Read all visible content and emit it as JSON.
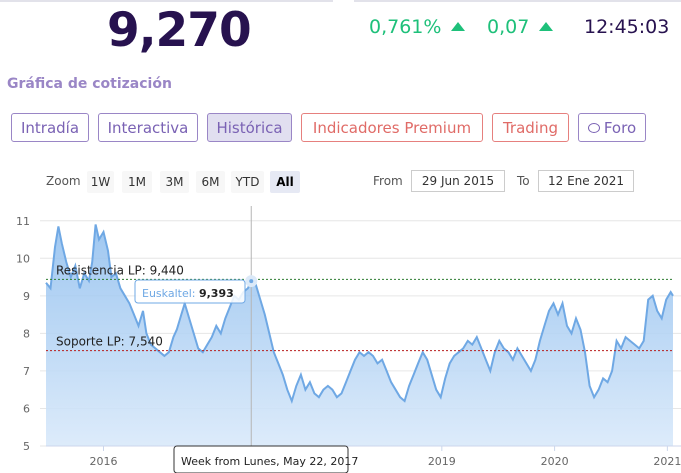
{
  "quote": {
    "price": "9,270",
    "change_pct": "0,761%",
    "change_abs": "0,07",
    "time": "12:45:03",
    "up_color": "#1ec07a"
  },
  "section_title": "Gráfica de cotización",
  "tabs": [
    {
      "label": "Intradía",
      "active": false,
      "style": "default"
    },
    {
      "label": "Interactiva",
      "active": false,
      "style": "default"
    },
    {
      "label": "Histórica",
      "active": true,
      "style": "default"
    },
    {
      "label": "Indicadores Premium",
      "active": false,
      "style": "premium"
    },
    {
      "label": "Trading",
      "active": false,
      "style": "premium"
    },
    {
      "label": "Foro",
      "active": false,
      "style": "default",
      "icon": "chat-bubble-icon"
    }
  ],
  "range_selector": {
    "zoom_label": "Zoom",
    "buttons": [
      "1W",
      "1M",
      "3M",
      "6M",
      "YTD",
      "All"
    ],
    "selected": "All",
    "from_label": "From",
    "from_value": "29 Jun 2015",
    "to_label": "To",
    "to_value": "12 Ene 2021"
  },
  "chart_data": {
    "type": "area",
    "x_ticks": [
      "2016",
      "2019",
      "2020",
      "2021"
    ],
    "y_ticks": [
      "5",
      "6",
      "7",
      "8",
      "9",
      "10",
      "11"
    ],
    "ylim": [
      5,
      11.5
    ],
    "series_color": "#6fa8e4",
    "reference_lines": [
      {
        "label": "Resistencia LP: 9,440",
        "value": 9.44,
        "color": "#2e7d32"
      },
      {
        "label": "Soporte LP: 7,540",
        "value": 7.54,
        "color": "#b71c1c"
      }
    ],
    "tooltip": {
      "series": "Euskaltel",
      "value": "9,393",
      "x_label": "Week from Lunes, May 22, 2017"
    },
    "points": [
      [
        2015.49,
        9.35
      ],
      [
        2015.53,
        9.2
      ],
      [
        2015.57,
        10.3
      ],
      [
        2015.6,
        10.85
      ],
      [
        2015.63,
        10.4
      ],
      [
        2015.67,
        9.9
      ],
      [
        2015.71,
        9.5
      ],
      [
        2015.75,
        9.8
      ],
      [
        2015.79,
        9.2
      ],
      [
        2015.83,
        9.6
      ],
      [
        2015.87,
        9.4
      ],
      [
        2015.9,
        9.9
      ],
      [
        2015.93,
        10.9
      ],
      [
        2015.96,
        10.5
      ],
      [
        2016.0,
        10.7
      ],
      [
        2016.04,
        10.2
      ],
      [
        2016.07,
        9.5
      ],
      [
        2016.11,
        9.6
      ],
      [
        2016.15,
        9.2
      ],
      [
        2016.19,
        9.0
      ],
      [
        2016.23,
        8.8
      ],
      [
        2016.27,
        8.5
      ],
      [
        2016.31,
        8.2
      ],
      [
        2016.35,
        8.6
      ],
      [
        2016.38,
        8.0
      ],
      [
        2016.42,
        7.7
      ],
      [
        2016.46,
        7.6
      ],
      [
        2016.5,
        7.5
      ],
      [
        2016.54,
        7.4
      ],
      [
        2016.58,
        7.5
      ],
      [
        2016.62,
        7.9
      ],
      [
        2016.65,
        8.1
      ],
      [
        2016.69,
        8.5
      ],
      [
        2016.72,
        8.8
      ],
      [
        2016.76,
        8.4
      ],
      [
        2016.8,
        8.0
      ],
      [
        2016.84,
        7.6
      ],
      [
        2016.88,
        7.5
      ],
      [
        2016.92,
        7.7
      ],
      [
        2016.96,
        7.9
      ],
      [
        2017.0,
        8.2
      ],
      [
        2017.04,
        8.0
      ],
      [
        2017.08,
        8.4
      ],
      [
        2017.12,
        8.7
      ],
      [
        2017.16,
        9.0
      ],
      [
        2017.2,
        8.9
      ],
      [
        2017.24,
        9.1
      ],
      [
        2017.28,
        9.2
      ],
      [
        2017.31,
        9.39
      ],
      [
        2017.35,
        9.3
      ],
      [
        2017.39,
        8.9
      ],
      [
        2017.43,
        8.5
      ],
      [
        2017.47,
        8.0
      ],
      [
        2017.51,
        7.5
      ],
      [
        2017.55,
        7.2
      ],
      [
        2017.59,
        6.9
      ],
      [
        2017.63,
        6.5
      ],
      [
        2017.67,
        6.2
      ],
      [
        2017.71,
        6.6
      ],
      [
        2017.75,
        6.9
      ],
      [
        2017.79,
        6.5
      ],
      [
        2017.83,
        6.7
      ],
      [
        2017.87,
        6.4
      ],
      [
        2017.91,
        6.3
      ],
      [
        2017.95,
        6.5
      ],
      [
        2017.99,
        6.6
      ],
      [
        2018.03,
        6.5
      ],
      [
        2018.07,
        6.3
      ],
      [
        2018.11,
        6.4
      ],
      [
        2018.15,
        6.7
      ],
      [
        2018.19,
        7.0
      ],
      [
        2018.23,
        7.3
      ],
      [
        2018.27,
        7.5
      ],
      [
        2018.31,
        7.4
      ],
      [
        2018.35,
        7.5
      ],
      [
        2018.39,
        7.4
      ],
      [
        2018.43,
        7.2
      ],
      [
        2018.47,
        7.3
      ],
      [
        2018.51,
        7.0
      ],
      [
        2018.55,
        6.7
      ],
      [
        2018.59,
        6.5
      ],
      [
        2018.63,
        6.3
      ],
      [
        2018.67,
        6.2
      ],
      [
        2018.71,
        6.6
      ],
      [
        2018.75,
        6.9
      ],
      [
        2018.79,
        7.2
      ],
      [
        2018.83,
        7.5
      ],
      [
        2018.87,
        7.3
      ],
      [
        2018.91,
        6.9
      ],
      [
        2018.95,
        6.5
      ],
      [
        2018.99,
        6.3
      ],
      [
        2019.03,
        6.8
      ],
      [
        2019.07,
        7.2
      ],
      [
        2019.11,
        7.4
      ],
      [
        2019.15,
        7.5
      ],
      [
        2019.19,
        7.6
      ],
      [
        2019.23,
        7.8
      ],
      [
        2019.27,
        7.7
      ],
      [
        2019.31,
        7.9
      ],
      [
        2019.35,
        7.6
      ],
      [
        2019.39,
        7.3
      ],
      [
        2019.43,
        7.0
      ],
      [
        2019.47,
        7.5
      ],
      [
        2019.51,
        7.8
      ],
      [
        2019.55,
        7.6
      ],
      [
        2019.59,
        7.5
      ],
      [
        2019.63,
        7.3
      ],
      [
        2019.67,
        7.6
      ],
      [
        2019.71,
        7.4
      ],
      [
        2019.75,
        7.2
      ],
      [
        2019.79,
        7.0
      ],
      [
        2019.83,
        7.3
      ],
      [
        2019.87,
        7.8
      ],
      [
        2019.91,
        8.2
      ],
      [
        2019.95,
        8.6
      ],
      [
        2019.99,
        8.8
      ],
      [
        2020.03,
        8.5
      ],
      [
        2020.07,
        8.8
      ],
      [
        2020.11,
        8.2
      ],
      [
        2020.15,
        8.0
      ],
      [
        2020.19,
        8.4
      ],
      [
        2020.23,
        8.1
      ],
      [
        2020.27,
        7.5
      ],
      [
        2020.31,
        6.6
      ],
      [
        2020.35,
        6.3
      ],
      [
        2020.39,
        6.5
      ],
      [
        2020.43,
        6.8
      ],
      [
        2020.47,
        6.7
      ],
      [
        2020.51,
        7.0
      ],
      [
        2020.55,
        7.8
      ],
      [
        2020.59,
        7.6
      ],
      [
        2020.63,
        7.9
      ],
      [
        2020.67,
        7.8
      ],
      [
        2020.71,
        7.7
      ],
      [
        2020.75,
        7.6
      ],
      [
        2020.79,
        7.8
      ],
      [
        2020.83,
        8.9
      ],
      [
        2020.87,
        9.0
      ],
      [
        2020.91,
        8.6
      ],
      [
        2020.95,
        8.4
      ],
      [
        2020.99,
        8.9
      ],
      [
        2021.03,
        9.1
      ],
      [
        2021.05,
        9.0
      ]
    ]
  }
}
